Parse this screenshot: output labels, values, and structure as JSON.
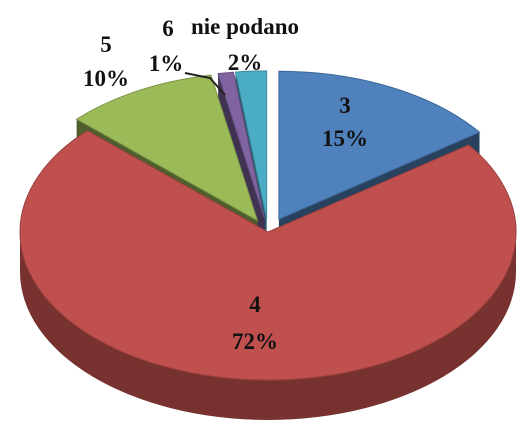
{
  "chart_data": {
    "type": "pie",
    "title": "",
    "categories": [
      "3",
      "4",
      "5",
      "6",
      "nie podano"
    ],
    "values": [
      15,
      72,
      10,
      1,
      2
    ],
    "percent_labels": [
      "15%",
      "72%",
      "10%",
      "1%",
      "2%"
    ],
    "colors": [
      "#4F81BD",
      "#C0504D",
      "#9BBB59",
      "#8064A2",
      "#4BACC6"
    ],
    "style": "3d-exploded"
  }
}
